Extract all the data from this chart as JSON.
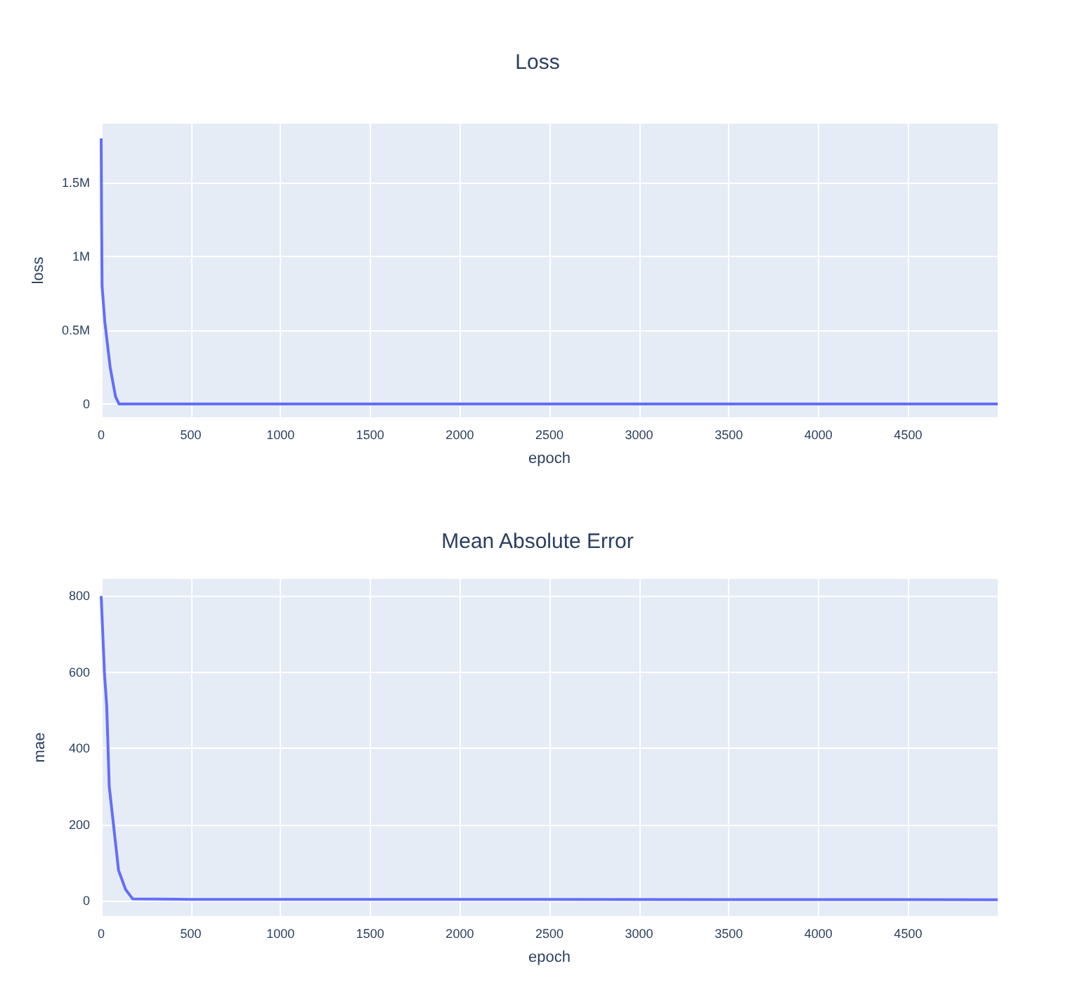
{
  "chart_data": [
    {
      "type": "line",
      "title": "Loss",
      "xlabel": "epoch",
      "ylabel": "loss",
      "x": [
        0,
        2,
        5,
        20,
        50,
        80,
        100,
        200,
        1000,
        5000
      ],
      "values": [
        1800000,
        1300000,
        800000,
        560000,
        250000,
        50000,
        0,
        0,
        0,
        0
      ],
      "color": "#636efa",
      "xlim": [
        0,
        5000
      ],
      "xticks": [
        0,
        500,
        1000,
        1500,
        2000,
        2500,
        3000,
        3500,
        4000,
        4500
      ],
      "ylim": [
        -90000,
        1900000
      ],
      "yticks": [
        0,
        {
          "value": 500000,
          "label": "0.5M"
        },
        {
          "value": 1000000,
          "label": "1M"
        },
        {
          "value": 1500000,
          "label": "1.5M"
        }
      ],
      "grid": true
    },
    {
      "type": "line",
      "title": "Mean Absolute Error",
      "xlabel": "epoch",
      "ylabel": "mae",
      "x": [
        0,
        18,
        31,
        45,
        71,
        97,
        136,
        176,
        500,
        5000
      ],
      "values": [
        800,
        600,
        510,
        300,
        190,
        80,
        30,
        5,
        4,
        3
      ],
      "color": "#636efa",
      "xlim": [
        0,
        5000
      ],
      "xticks": [
        0,
        500,
        1000,
        1500,
        2000,
        2500,
        3000,
        3500,
        4000,
        4500
      ],
      "ylim": [
        -40,
        845
      ],
      "yticks": [
        0,
        200,
        400,
        600,
        800
      ],
      "grid": true
    }
  ]
}
